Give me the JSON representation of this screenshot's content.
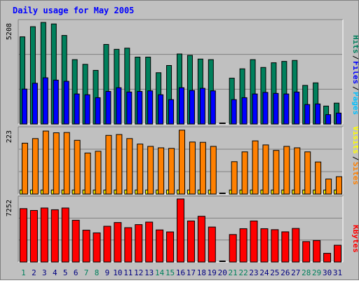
{
  "colors": {
    "background": "#c0c0c0",
    "hits": "#00805c",
    "files": "#0000ff",
    "pages": "#00c0ff",
    "visits": "#ffff00",
    "sites": "#ff8000",
    "kbytes": "#ff0000",
    "title": "#0000ff",
    "weekend_label": "#00805c",
    "weekday_label": "#000080"
  },
  "chart_data": [
    {
      "type": "bar",
      "title": "Daily usage for May 2005",
      "axis_max_label": "5208",
      "ylim": [
        0,
        5208
      ],
      "legend": [
        "Pages",
        "Files",
        "Hits"
      ],
      "categories": [
        "1",
        "2",
        "3",
        "4",
        "5",
        "6",
        "7",
        "8",
        "9",
        "10",
        "11",
        "12",
        "13",
        "14",
        "15",
        "16",
        "17",
        "18",
        "19",
        "20",
        "21",
        "22",
        "23",
        "24",
        "25",
        "26",
        "27",
        "28",
        "29",
        "30",
        "31"
      ],
      "weekend_days": [
        "1",
        "7",
        "8",
        "14",
        "15",
        "21",
        "22",
        "28",
        "29"
      ],
      "grid": true,
      "series": [
        {
          "name": "Hits",
          "values": [
            4470,
            4990,
            5208,
            5130,
            4540,
            3300,
            3060,
            2750,
            4080,
            3830,
            3890,
            3430,
            3430,
            2630,
            3000,
            3590,
            3520,
            3330,
            3300,
            0,
            2350,
            2830,
            3300,
            2900,
            3140,
            3210,
            3260,
            1980,
            2110,
            920,
            1070
          ]
        },
        {
          "name": "Files",
          "values": [
            1790,
            2090,
            2370,
            2250,
            2190,
            1540,
            1500,
            1350,
            1670,
            1860,
            1640,
            1670,
            1700,
            1500,
            1250,
            1860,
            1720,
            1830,
            1700,
            0,
            1250,
            1350,
            1540,
            1620,
            1570,
            1540,
            1640,
            1000,
            1030,
            480,
            560
          ]
        },
        {
          "name": "Pages",
          "values": [
            0,
            0,
            0,
            0,
            0,
            0,
            0,
            0,
            0,
            0,
            0,
            0,
            0,
            0,
            0,
            0,
            0,
            0,
            0,
            0,
            0,
            0,
            0,
            0,
            0,
            0,
            0,
            0,
            0,
            0,
            0
          ]
        }
      ]
    },
    {
      "type": "bar",
      "axis_max_label": "223",
      "ylim": [
        0,
        223
      ],
      "legend": [
        "Sites",
        "Visits"
      ],
      "categories": [
        "1",
        "2",
        "3",
        "4",
        "5",
        "6",
        "7",
        "8",
        "9",
        "10",
        "11",
        "12",
        "13",
        "14",
        "15",
        "16",
        "17",
        "18",
        "19",
        "20",
        "21",
        "22",
        "23",
        "24",
        "25",
        "26",
        "27",
        "28",
        "29",
        "30",
        "31"
      ],
      "grid": true,
      "series": [
        {
          "name": "Visits",
          "values": [
            14,
            14,
            14,
            14,
            14,
            14,
            14,
            14,
            14,
            14,
            14,
            14,
            14,
            14,
            14,
            14,
            14,
            14,
            14,
            0,
            14,
            14,
            14,
            14,
            14,
            14,
            14,
            14,
            14,
            14,
            14
          ]
        },
        {
          "name": "Sites",
          "values": [
            176,
            192,
            218,
            212,
            213,
            186,
            142,
            148,
            203,
            206,
            192,
            173,
            165,
            160,
            158,
            221,
            180,
            179,
            165,
            0,
            112,
            146,
            184,
            170,
            151,
            165,
            160,
            146,
            111,
            52,
            60
          ]
        }
      ]
    },
    {
      "type": "bar",
      "axis_max_label": "7252",
      "ylim": [
        0,
        7252
      ],
      "legend": [
        "KBytes"
      ],
      "categories": [
        "1",
        "2",
        "3",
        "4",
        "5",
        "6",
        "7",
        "8",
        "9",
        "10",
        "11",
        "12",
        "13",
        "14",
        "15",
        "16",
        "17",
        "18",
        "19",
        "20",
        "21",
        "22",
        "23",
        "24",
        "25",
        "26",
        "27",
        "28",
        "29",
        "30",
        "31"
      ],
      "grid": true,
      "series": [
        {
          "name": "KBytes",
          "values": [
            6140,
            5930,
            6210,
            6010,
            6210,
            4800,
            3660,
            3350,
            4110,
            4540,
            3950,
            4300,
            4590,
            3690,
            3460,
            7252,
            4720,
            5260,
            4020,
            0,
            3160,
            3830,
            4720,
            3830,
            3720,
            3470,
            3860,
            2350,
            2470,
            1000,
            1930
          ]
        }
      ]
    }
  ]
}
